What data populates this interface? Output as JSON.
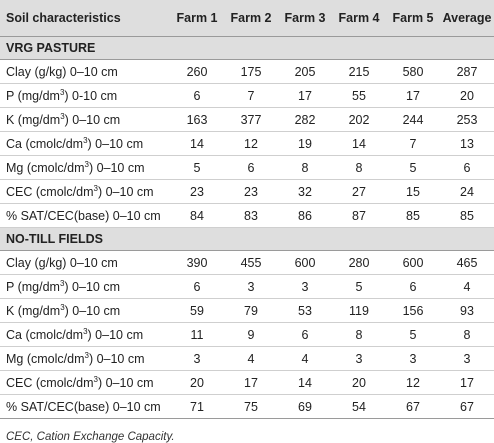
{
  "header": {
    "col0": "Soil characteristics",
    "farms": [
      "Farm 1",
      "Farm 2",
      "Farm 3",
      "Farm 4",
      "Farm 5"
    ],
    "average": "Average"
  },
  "sections": [
    {
      "title": "VRG PASTURE",
      "rows": [
        {
          "pre": "Clay (g/kg) 0–10 cm",
          "sup": "",
          "post": "",
          "values": [
            "260",
            "175",
            "205",
            "215",
            "580",
            "287"
          ]
        },
        {
          "pre": "P (mg/dm",
          "sup": "3",
          "post": ") 0-10 cm",
          "values": [
            "6",
            "7",
            "17",
            "55",
            "17",
            "20"
          ]
        },
        {
          "pre": "K (mg/dm",
          "sup": "3",
          "post": ") 0–10 cm",
          "values": [
            "163",
            "377",
            "282",
            "202",
            "244",
            "253"
          ]
        },
        {
          "pre": "Ca (cmolc/dm",
          "sup": "3",
          "post": ") 0–10 cm",
          "values": [
            "14",
            "12",
            "19",
            "14",
            "7",
            "13"
          ]
        },
        {
          "pre": "Mg (cmolc/dm",
          "sup": "3",
          "post": ") 0–10 cm",
          "values": [
            "5",
            "6",
            "8",
            "8",
            "5",
            "6"
          ]
        },
        {
          "pre": "CEC (cmolc/dm",
          "sup": "3",
          "post": ") 0–10 cm",
          "values": [
            "23",
            "23",
            "32",
            "27",
            "15",
            "24"
          ]
        },
        {
          "pre": "% SAT/CEC(base) 0–10 cm",
          "sup": "",
          "post": "",
          "values": [
            "84",
            "83",
            "86",
            "87",
            "85",
            "85"
          ]
        }
      ]
    },
    {
      "title": "NO-TILL FIELDS",
      "rows": [
        {
          "pre": "Clay (g/kg) 0–10 cm",
          "sup": "",
          "post": "",
          "values": [
            "390",
            "455",
            "600",
            "280",
            "600",
            "465"
          ]
        },
        {
          "pre": "P (mg/dm",
          "sup": "3",
          "post": ") 0–10 cm",
          "values": [
            "6",
            "3",
            "3",
            "5",
            "6",
            "4"
          ]
        },
        {
          "pre": "K (mg/dm",
          "sup": "3",
          "post": ") 0–10 cm",
          "values": [
            "59",
            "79",
            "53",
            "119",
            "156",
            "93"
          ]
        },
        {
          "pre": "Ca (cmolc/dm",
          "sup": "3",
          "post": ") 0–10 cm",
          "values": [
            "11",
            "9",
            "6",
            "8",
            "5",
            "8"
          ]
        },
        {
          "pre": "Mg (cmolc/dm",
          "sup": "3",
          "post": ") 0–10 cm",
          "values": [
            "3",
            "4",
            "4",
            "3",
            "3",
            "3"
          ]
        },
        {
          "pre": "CEC (cmolc/dm",
          "sup": "3",
          "post": ") 0–10 cm",
          "values": [
            "20",
            "17",
            "14",
            "20",
            "12",
            "17"
          ]
        },
        {
          "pre": "% SAT/CEC(base) 0–10 cm",
          "sup": "",
          "post": "",
          "values": [
            "71",
            "75",
            "69",
            "54",
            "67",
            "67"
          ]
        }
      ]
    }
  ],
  "footnote": "CEC, Cation Exchange Capacity."
}
